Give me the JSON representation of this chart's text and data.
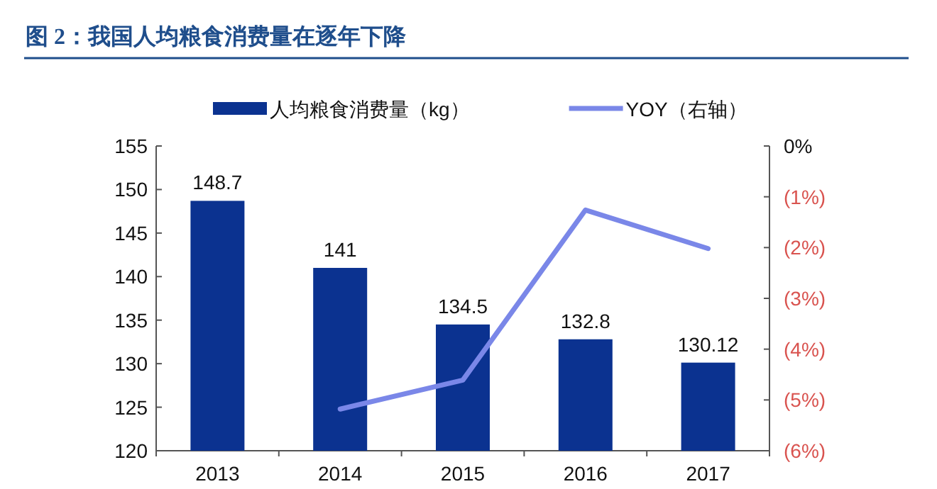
{
  "chart_data": {
    "type": "bar",
    "title": "图 2：我国人均粮食消费量在逐年下降",
    "categories": [
      "2013",
      "2014",
      "2015",
      "2016",
      "2017"
    ],
    "series": [
      {
        "name": "人均粮食消费量（kg）",
        "color": "#0b3290",
        "values": [
          148.7,
          141,
          134.5,
          132.8,
          130.12
        ],
        "value_labels": [
          "148.7",
          "141",
          "134.5",
          "132.8",
          "130.12"
        ]
      },
      {
        "name": "YOY（右轴）",
        "type": "line",
        "axis": "y2",
        "color": "#7a87e8",
        "values": [
          null,
          -5.18,
          -4.61,
          -1.26,
          -2.02
        ]
      }
    ],
    "ylim": [
      120,
      155
    ],
    "yticks": [
      120,
      125,
      130,
      135,
      140,
      145,
      150,
      155
    ],
    "y2lim": [
      -6,
      0
    ],
    "y2ticks": [
      {
        "value": -6,
        "label": "(6%)"
      },
      {
        "value": -5,
        "label": "(5%)"
      },
      {
        "value": -4,
        "label": "(4%)"
      },
      {
        "value": -3,
        "label": "(3%)"
      },
      {
        "value": -2,
        "label": "(2%)"
      },
      {
        "value": -1,
        "label": "(1%)"
      },
      {
        "value": 0,
        "label": "0%"
      }
    ],
    "legend": "top",
    "grid": false
  }
}
